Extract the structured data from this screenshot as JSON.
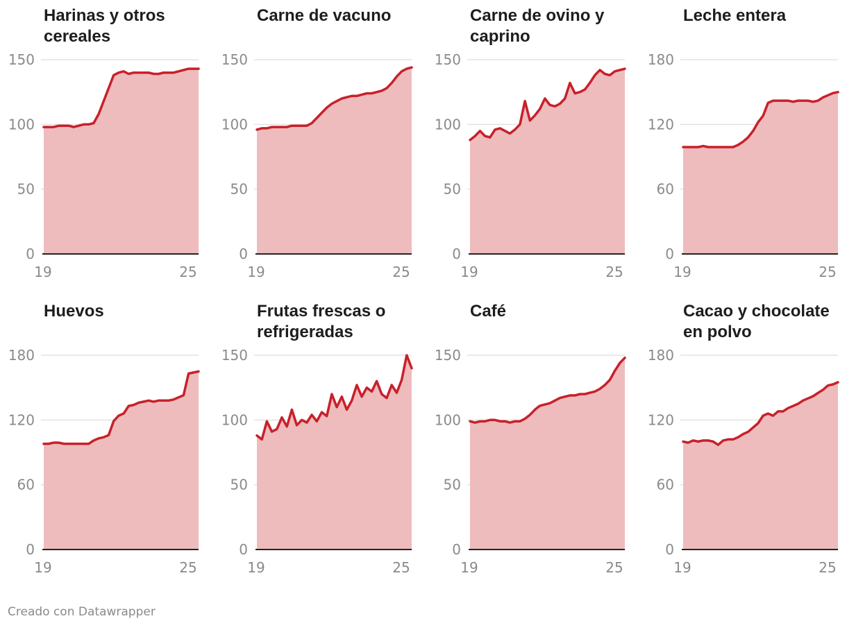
{
  "chart_data": [
    {
      "type": "area",
      "title": "Harinas y otros cereales",
      "x_tick_labels": [
        "19",
        "25"
      ],
      "y_ticks": [
        0,
        50,
        100,
        150
      ],
      "ylim": [
        0,
        150
      ],
      "xlim": [
        2019,
        2025.2
      ],
      "x": [
        2019.0,
        2019.2,
        2019.4,
        2019.6,
        2019.8,
        2020.0,
        2020.2,
        2020.4,
        2020.6,
        2020.8,
        2021.0,
        2021.2,
        2021.4,
        2021.6,
        2021.8,
        2022.0,
        2022.2,
        2022.4,
        2022.6,
        2022.8,
        2023.0,
        2023.2,
        2023.4,
        2023.6,
        2023.8,
        2024.0,
        2024.2,
        2024.4,
        2024.6,
        2024.8,
        2025.0,
        2025.2
      ],
      "values": [
        98,
        98,
        98,
        99,
        99,
        99,
        98,
        99,
        100,
        100,
        101,
        108,
        118,
        128,
        138,
        140,
        141,
        139,
        140,
        140,
        140,
        140,
        139,
        139,
        140,
        140,
        140,
        141,
        142,
        143,
        143,
        143
      ]
    },
    {
      "type": "area",
      "title": "Carne de vacuno",
      "x_tick_labels": [
        "19",
        "25"
      ],
      "y_ticks": [
        0,
        50,
        100,
        150
      ],
      "ylim": [
        0,
        150
      ],
      "xlim": [
        2019,
        2025.2
      ],
      "x": [
        2019.0,
        2019.2,
        2019.4,
        2019.6,
        2019.8,
        2020.0,
        2020.2,
        2020.4,
        2020.6,
        2020.8,
        2021.0,
        2021.2,
        2021.4,
        2021.6,
        2021.8,
        2022.0,
        2022.2,
        2022.4,
        2022.6,
        2022.8,
        2023.0,
        2023.2,
        2023.4,
        2023.6,
        2023.8,
        2024.0,
        2024.2,
        2024.4,
        2024.6,
        2024.8,
        2025.0,
        2025.2
      ],
      "values": [
        96,
        97,
        97,
        98,
        98,
        98,
        98,
        99,
        99,
        99,
        99,
        101,
        105,
        109,
        113,
        116,
        118,
        120,
        121,
        122,
        122,
        123,
        124,
        124,
        125,
        126,
        128,
        132,
        137,
        141,
        143,
        144
      ]
    },
    {
      "type": "area",
      "title": "Carne de ovino y caprino",
      "x_tick_labels": [
        "19",
        "25"
      ],
      "y_ticks": [
        0,
        50,
        100,
        150
      ],
      "ylim": [
        0,
        150
      ],
      "xlim": [
        2019,
        2025.2
      ],
      "x": [
        2019.0,
        2019.2,
        2019.4,
        2019.6,
        2019.8,
        2020.0,
        2020.2,
        2020.4,
        2020.6,
        2020.8,
        2021.0,
        2021.2,
        2021.4,
        2021.6,
        2021.8,
        2022.0,
        2022.2,
        2022.4,
        2022.6,
        2022.8,
        2023.0,
        2023.2,
        2023.4,
        2023.6,
        2023.8,
        2024.0,
        2024.2,
        2024.4,
        2024.6,
        2024.8,
        2025.0,
        2025.2
      ],
      "values": [
        88,
        91,
        95,
        91,
        90,
        96,
        97,
        95,
        93,
        96,
        100,
        118,
        103,
        107,
        112,
        120,
        115,
        114,
        116,
        120,
        132,
        124,
        125,
        127,
        132,
        138,
        142,
        139,
        138,
        141,
        142,
        143
      ]
    },
    {
      "type": "area",
      "title": "Leche entera",
      "x_tick_labels": [
        "19",
        "25"
      ],
      "y_ticks": [
        0,
        60,
        120,
        180
      ],
      "ylim": [
        0,
        180
      ],
      "xlim": [
        2019,
        2025.2
      ],
      "x": [
        2019.0,
        2019.2,
        2019.4,
        2019.6,
        2019.8,
        2020.0,
        2020.2,
        2020.4,
        2020.6,
        2020.8,
        2021.0,
        2021.2,
        2021.4,
        2021.6,
        2021.8,
        2022.0,
        2022.2,
        2022.4,
        2022.6,
        2022.8,
        2023.0,
        2023.2,
        2023.4,
        2023.6,
        2023.8,
        2024.0,
        2024.2,
        2024.4,
        2024.6,
        2024.8,
        2025.0,
        2025.2
      ],
      "values": [
        99,
        99,
        99,
        99,
        100,
        99,
        99,
        99,
        99,
        99,
        99,
        101,
        104,
        108,
        114,
        122,
        128,
        140,
        142,
        142,
        142,
        142,
        141,
        142,
        142,
        142,
        141,
        142,
        145,
        147,
        149,
        150
      ]
    },
    {
      "type": "area",
      "title": "Huevos",
      "x_tick_labels": [
        "19",
        "25"
      ],
      "y_ticks": [
        0,
        60,
        120,
        180
      ],
      "ylim": [
        0,
        180
      ],
      "xlim": [
        2019,
        2025.2
      ],
      "x": [
        2019.0,
        2019.2,
        2019.4,
        2019.6,
        2019.8,
        2020.0,
        2020.2,
        2020.4,
        2020.6,
        2020.8,
        2021.0,
        2021.2,
        2021.4,
        2021.6,
        2021.8,
        2022.0,
        2022.2,
        2022.4,
        2022.6,
        2022.8,
        2023.0,
        2023.2,
        2023.4,
        2023.6,
        2023.8,
        2024.0,
        2024.2,
        2024.4,
        2024.6,
        2024.8,
        2025.0,
        2025.2
      ],
      "values": [
        98,
        98,
        99,
        99,
        98,
        98,
        98,
        98,
        98,
        98,
        101,
        103,
        104,
        106,
        119,
        124,
        126,
        133,
        134,
        136,
        137,
        138,
        137,
        138,
        138,
        138,
        139,
        141,
        143,
        163,
        164,
        165
      ]
    },
    {
      "type": "area",
      "title": "Frutas frescas o refrigeradas",
      "x_tick_labels": [
        "19",
        "25"
      ],
      "y_ticks": [
        0,
        50,
        100,
        150
      ],
      "ylim": [
        0,
        150
      ],
      "xlim": [
        2019,
        2025.2
      ],
      "x": [
        2019.0,
        2019.2,
        2019.4,
        2019.6,
        2019.8,
        2020.0,
        2020.2,
        2020.4,
        2020.6,
        2020.8,
        2021.0,
        2021.2,
        2021.4,
        2021.6,
        2021.8,
        2022.0,
        2022.2,
        2022.4,
        2022.6,
        2022.8,
        2023.0,
        2023.2,
        2023.4,
        2023.6,
        2023.8,
        2024.0,
        2024.2,
        2024.4,
        2024.6,
        2024.8,
        2025.0,
        2025.2
      ],
      "values": [
        88,
        85,
        99,
        91,
        93,
        102,
        95,
        108,
        96,
        100,
        98,
        104,
        99,
        106,
        103,
        120,
        110,
        118,
        108,
        115,
        127,
        118,
        125,
        122,
        130,
        120,
        117,
        127,
        121,
        131,
        150,
        140
      ]
    },
    {
      "type": "area",
      "title": "Café",
      "x_tick_labels": [
        "19",
        "25"
      ],
      "y_ticks": [
        0,
        50,
        100,
        150
      ],
      "ylim": [
        0,
        150
      ],
      "xlim": [
        2019,
        2025.2
      ],
      "x": [
        2019.0,
        2019.2,
        2019.4,
        2019.6,
        2019.8,
        2020.0,
        2020.2,
        2020.4,
        2020.6,
        2020.8,
        2021.0,
        2021.2,
        2021.4,
        2021.6,
        2021.8,
        2022.0,
        2022.2,
        2022.4,
        2022.6,
        2022.8,
        2023.0,
        2023.2,
        2023.4,
        2023.6,
        2023.8,
        2024.0,
        2024.2,
        2024.4,
        2024.6,
        2024.8,
        2025.0,
        2025.2
      ],
      "values": [
        99,
        98,
        99,
        99,
        100,
        100,
        99,
        99,
        98,
        99,
        99,
        101,
        104,
        108,
        111,
        112,
        113,
        115,
        117,
        118,
        119,
        119,
        120,
        120,
        121,
        122,
        124,
        127,
        131,
        138,
        144,
        148
      ]
    },
    {
      "type": "area",
      "title": "Cacao y chocolate en polvo",
      "x_tick_labels": [
        "19",
        "25"
      ],
      "y_ticks": [
        0,
        60,
        120,
        180
      ],
      "ylim": [
        0,
        180
      ],
      "xlim": [
        2019,
        2025.2
      ],
      "x": [
        2019.0,
        2019.2,
        2019.4,
        2019.6,
        2019.8,
        2020.0,
        2020.2,
        2020.4,
        2020.6,
        2020.8,
        2021.0,
        2021.2,
        2021.4,
        2021.6,
        2021.8,
        2022.0,
        2022.2,
        2022.4,
        2022.6,
        2022.8,
        2023.0,
        2023.2,
        2023.4,
        2023.6,
        2023.8,
        2024.0,
        2024.2,
        2024.4,
        2024.6,
        2024.8,
        2025.0,
        2025.2
      ],
      "values": [
        100,
        99,
        101,
        100,
        101,
        101,
        100,
        97,
        101,
        102,
        102,
        104,
        107,
        109,
        113,
        117,
        124,
        126,
        124,
        128,
        128,
        131,
        133,
        135,
        138,
        140,
        142,
        145,
        148,
        152,
        153,
        155
      ]
    }
  ],
  "colors": {
    "line": "#c8202a",
    "area": "#eebcbd",
    "grid": "#e2e2e2",
    "axis": "#222222",
    "tick_text": "#8a8a8a",
    "title_text": "#1d1d1d"
  },
  "footer": {
    "credit": "Creado con Datawrapper"
  }
}
